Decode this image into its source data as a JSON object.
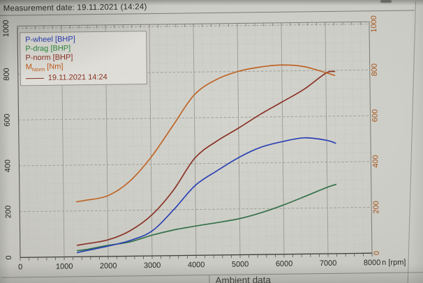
{
  "header": {
    "measurement_date_label": "Measurement date: 19.11.2021 (14:24)"
  },
  "legend": {
    "items": [
      {
        "label": "P-wheel [BHP]",
        "color": "#2a41b4"
      },
      {
        "label": "P-drag [BHP]",
        "color": "#2e8b3e"
      },
      {
        "label": "P-norm [BHP]",
        "color": "#8a3326"
      },
      {
        "main": "M",
        "sub": "Norm",
        "rest": " [Nm]",
        "color": "#c05a1a"
      },
      {
        "label": "19.11.2021 14:24",
        "swatch": true,
        "color": "#8a3326"
      }
    ]
  },
  "chart_data": {
    "type": "line",
    "title": "",
    "xlabel": "n [rpm]",
    "ylabel": "",
    "xlim": [
      0,
      8000
    ],
    "ylim": [
      0,
      1010
    ],
    "x_ticks": [
      0,
      1000,
      2000,
      3000,
      4000,
      5000,
      6000,
      7000,
      8000
    ],
    "y_ticks": [
      0,
      200,
      400,
      600,
      800,
      1000
    ],
    "grid": "major-and-minor, minor every 200 rpm / 40 units",
    "legend_position": "upper-left box",
    "x": [
      1300,
      1500,
      2000,
      2500,
      3000,
      3500,
      4000,
      4500,
      5000,
      5500,
      6000,
      6500,
      7000,
      7200
    ],
    "series": [
      {
        "name": "P-wheel [BHP]",
        "color": "#2a41b4",
        "z": 2,
        "values": [
          18,
          26,
          45,
          68,
          108,
          200,
          305,
          368,
          425,
          468,
          492,
          507,
          495,
          482
        ]
      },
      {
        "name": "P-drag [BHP]",
        "color": "#33714a",
        "z": 1,
        "values": [
          27,
          31,
          48,
          62,
          90,
          112,
          128,
          142,
          158,
          183,
          215,
          252,
          290,
          302
        ]
      },
      {
        "name": "P-norm [BHP]",
        "color": "#8a3326",
        "z": 3,
        "values": [
          50,
          56,
          72,
          110,
          178,
          285,
          425,
          497,
          553,
          612,
          665,
          719,
          788,
          795
        ]
      },
      {
        "name": "M-Norm [Nm]",
        "color": "#bf6527",
        "z": 4,
        "values": [
          240,
          246,
          264,
          325,
          430,
          565,
          700,
          765,
          800,
          818,
          826,
          818,
          790,
          778
        ]
      }
    ]
  },
  "footer": {
    "section_label": "Ambient data"
  },
  "colors": {
    "paper": "#cbcbc5",
    "grid_major": "#9a9a92",
    "grid_minor": "#b9b9b2",
    "axis": "#3f3f39",
    "title_text": "#2c2c26",
    "left_axis_labels": "#2a2a24",
    "right_axis_labels": "#a4571e"
  }
}
